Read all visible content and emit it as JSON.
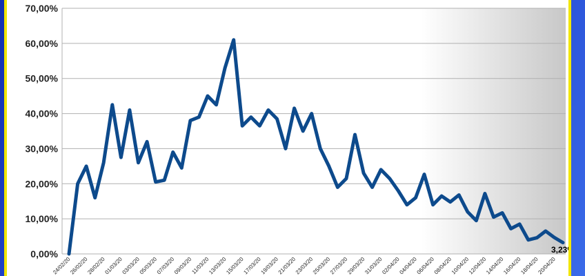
{
  "chart_data": {
    "type": "line",
    "title": "",
    "xlabel": "",
    "ylabel": "",
    "ylim": [
      0,
      0.7
    ],
    "yticks": [
      "0,00%",
      "10,00%",
      "20,00%",
      "30,00%",
      "40,00%",
      "50,00%",
      "60,00%",
      "70,00%"
    ],
    "grid": true,
    "line_color": "#0d4a8c",
    "x_labels": [
      "24/02/20",
      "26/02/20",
      "28/02/20",
      "01/03/20",
      "03/03/20",
      "05/03/20",
      "07/03/20",
      "09/03/20",
      "11/03/20",
      "13/03/20",
      "15/03/20",
      "17/03/20",
      "19/03/20",
      "21/03/20",
      "23/03/20",
      "25/03/20",
      "27/03/20",
      "29/03/20",
      "31/03/20",
      "02/04/20",
      "04/04/20",
      "06/04/20",
      "08/04/20",
      "10/04/20",
      "12/04/20",
      "14/04/20",
      "16/04/20",
      "18/04/20",
      "20/04/20"
    ],
    "series": [
      {
        "name": "",
        "values": [
          0.0,
          0.2,
          0.25,
          0.16,
          0.26,
          0.425,
          0.275,
          0.41,
          0.26,
          0.32,
          0.205,
          0.21,
          0.29,
          0.245,
          0.38,
          0.39,
          0.45,
          0.425,
          0.53,
          0.61,
          0.365,
          0.39,
          0.365,
          0.41,
          0.385,
          0.3,
          0.415,
          0.35,
          0.4,
          0.3,
          0.25,
          0.19,
          0.215,
          0.34,
          0.23,
          0.19,
          0.24,
          0.215,
          0.18,
          0.14,
          0.16,
          0.227,
          0.14,
          0.165,
          0.148,
          0.168,
          0.12,
          0.095,
          0.172,
          0.105,
          0.117,
          0.072,
          0.085,
          0.04,
          0.046,
          0.065,
          0.047,
          0.0323
        ]
      }
    ],
    "last_value_label": "3,23%"
  }
}
